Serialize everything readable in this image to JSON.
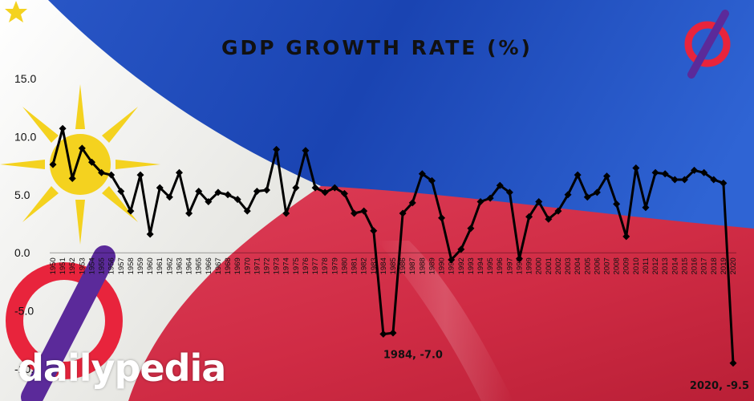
{
  "brand": {
    "name": "dailypedia"
  },
  "chart_data": {
    "type": "line",
    "title": "GDP GROWTH RATE (%)",
    "xlabel": "",
    "ylabel": "",
    "ylim": [
      -10.0,
      15.0
    ],
    "yticks": [
      "-10.0",
      "-5.0",
      "0.0",
      "5.0",
      "10.0",
      "15.0"
    ],
    "x": [
      "1950",
      "1951",
      "1952",
      "1953",
      "1954",
      "1955",
      "1956",
      "1957",
      "1958",
      "1959",
      "1960",
      "1961",
      "1962",
      "1963",
      "1964",
      "1965",
      "1966",
      "1967",
      "1968",
      "1969",
      "1970",
      "1971",
      "1972",
      "1973",
      "1974",
      "1975",
      "1976",
      "1977",
      "1978",
      "1979",
      "1980",
      "1981",
      "1982",
      "1983",
      "1984",
      "1985",
      "1986",
      "1987",
      "1988",
      "1989",
      "1990",
      "1991",
      "1992",
      "1993",
      "1994",
      "1995",
      "1996",
      "1997",
      "1998",
      "1999",
      "2000",
      "2001",
      "2002",
      "2003",
      "2004",
      "2005",
      "2006",
      "2007",
      "2008",
      "2009",
      "2010",
      "2011",
      "2012",
      "2013",
      "2014",
      "2015",
      "2016",
      "2017",
      "2018",
      "2019",
      "2020"
    ],
    "series": [
      {
        "values": [
          7.6,
          10.7,
          6.4,
          9.0,
          7.8,
          6.9,
          6.7,
          5.3,
          3.6,
          6.7,
          1.6,
          5.6,
          4.8,
          6.9,
          3.4,
          5.3,
          4.4,
          5.2,
          5.0,
          4.6,
          3.6,
          5.3,
          5.4,
          8.9,
          3.4,
          5.6,
          8.8,
          5.6,
          5.2,
          5.6,
          5.1,
          3.4,
          3.6,
          1.9,
          -7.0,
          -6.9,
          3.4,
          4.3,
          6.8,
          6.2,
          3.0,
          -0.6,
          0.3,
          2.1,
          4.4,
          4.7,
          5.8,
          5.2,
          -0.5,
          3.1,
          4.4,
          2.9,
          3.6,
          5.0,
          6.7,
          4.8,
          5.2,
          6.6,
          4.2,
          1.4,
          7.3,
          3.9,
          6.9,
          6.8,
          6.3,
          6.3,
          7.1,
          6.9,
          6.3,
          6.0,
          -9.5
        ]
      }
    ],
    "annotations": [
      {
        "x": "1984",
        "y": -7.0,
        "text": "1984, -7.0"
      },
      {
        "x": "2020",
        "y": -9.5,
        "text": "2020, -9.5"
      }
    ],
    "colors": {
      "line": "#000000",
      "blue": "#1c47b8",
      "red": "#d12c44",
      "white": "#f4f4f0",
      "sun": "#f4d21f"
    }
  }
}
